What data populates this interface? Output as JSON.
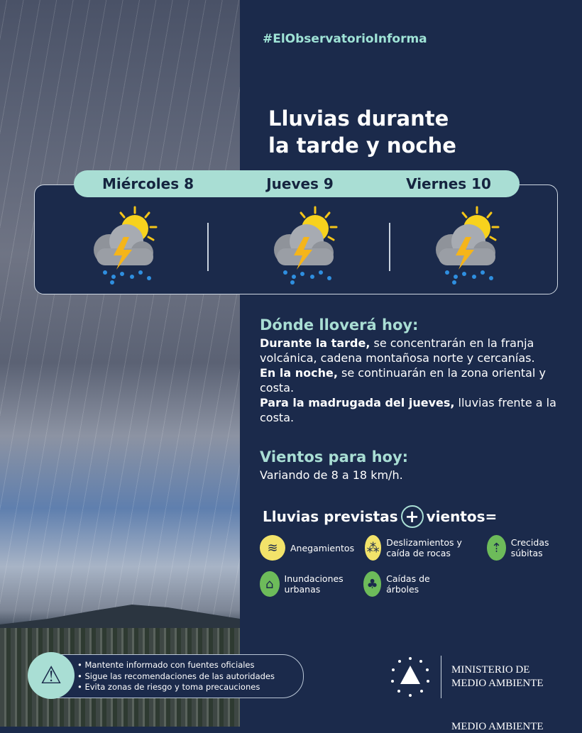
{
  "hashtag": "#ElObservatorioInforma",
  "title": [
    "Lluvias durante",
    "la tarde y noche"
  ],
  "days": [
    {
      "label": "Miércoles 8",
      "icon": "sun-cloud-storm-rain-icon"
    },
    {
      "label": "Jueves 9",
      "icon": "sun-cloud-storm-rain-icon"
    },
    {
      "label": "Viernes 10",
      "icon": "sun-cloud-storm-rain-icon"
    }
  ],
  "rain": {
    "heading": "Dónde lloverá hoy:",
    "p1_bold": "Durante la tarde,",
    "p1": " se concentrarán en la franja volcánica, cadena montañosa norte y cercanías.",
    "p2_bold": "En la noche,",
    "p2": " se continuarán en la zona oriental y costa.",
    "p3_bold": "Para la madrugada del jueves,",
    "p3": " lluvias frente a la costa."
  },
  "wind": {
    "heading": "Vientos para hoy:",
    "text": "Variando de 8 a 18 km/h."
  },
  "combo": {
    "left": "Lluvias previstas",
    "plus": "+",
    "right": "vientos="
  },
  "hazards": [
    {
      "label": "Anegamientos",
      "icon": "waterlogging-icon",
      "color": "#f2e36a"
    },
    {
      "label": "Deslizamientos y caída de rocas",
      "icon": "landslide-icon",
      "color": "#f2e36a"
    },
    {
      "label": "Crecidas súbitas",
      "icon": "flash-flood-icon",
      "color": "#6dbb5a"
    },
    {
      "label": "Inundaciones urbanas",
      "icon": "urban-flood-icon",
      "color": "#6dbb5a"
    },
    {
      "label": "Caídas de árboles",
      "icon": "falling-tree-icon",
      "color": "#6dbb5a"
    }
  ],
  "warnings": [
    "Mantente informado con fuentes oficiales",
    "Sigue las recomendaciones de las autoridades",
    "Evita zonas de riesgo y toma precauciones"
  ],
  "ministry": [
    "MINISTERIO DE",
    "MEDIO AMBIENTE"
  ],
  "bottom_strip": "MEDIO AMBIENTE",
  "colors": {
    "background": "#1b2a4b",
    "accent": "#a9ded4"
  }
}
